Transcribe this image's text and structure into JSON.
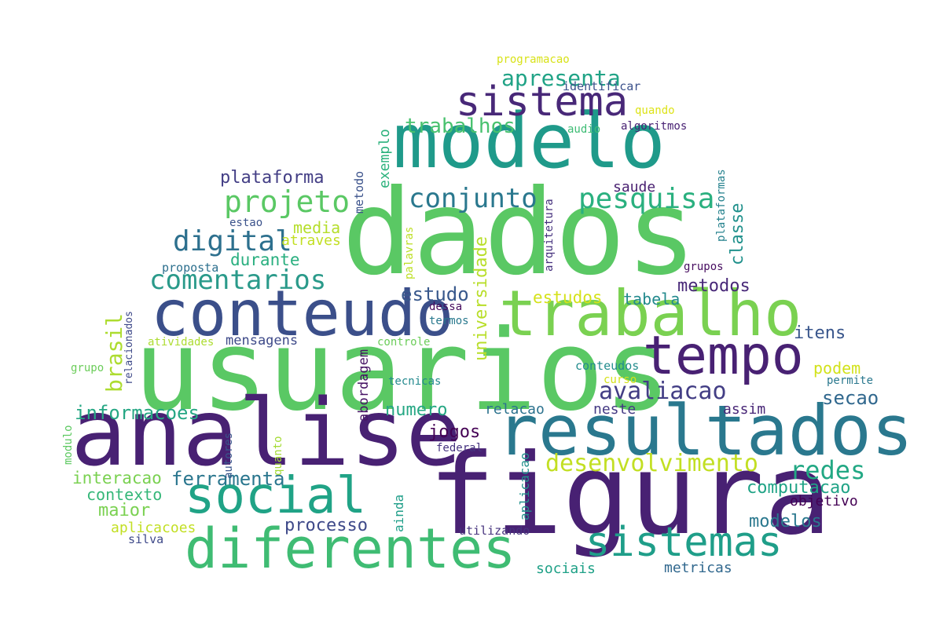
{
  "words": [
    {
      "text": "dados",
      "color": "#5ac864"
    },
    {
      "text": "usuarios",
      "color": "#5ac864"
    },
    {
      "text": "figura",
      "color": "#482173"
    },
    {
      "text": "analise",
      "color": "#482173"
    },
    {
      "text": "modelo",
      "color": "#1f9a8a"
    },
    {
      "text": "resultados",
      "color": "#2a788e"
    },
    {
      "text": "conteudo",
      "color": "#3b4f8a"
    },
    {
      "text": "trabalho",
      "color": "#7ad151"
    },
    {
      "text": "diferentes",
      "color": "#3fbc73"
    },
    {
      "text": "social",
      "color": "#20a386"
    },
    {
      "text": "tempo",
      "color": "#482173"
    },
    {
      "text": "sistema",
      "color": "#482878"
    },
    {
      "text": "sistemas",
      "color": "#1f9e89"
    },
    {
      "text": "projeto",
      "color": "#5ac864"
    },
    {
      "text": "pesquisa",
      "color": "#2ab07f"
    },
    {
      "text": "conjunto",
      "color": "#2a788e"
    },
    {
      "text": "digital",
      "color": "#2d708e"
    },
    {
      "text": "comentarios",
      "color": "#2a9a8a"
    },
    {
      "text": "desenvolvimento",
      "color": "#c2df23"
    },
    {
      "text": "avaliacao",
      "color": "#433e85"
    },
    {
      "text": "apresenta",
      "color": "#20a386"
    },
    {
      "text": "trabalhos",
      "color": "#48c16e"
    },
    {
      "text": "plataforma",
      "color": "#433e85"
    },
    {
      "text": "redes",
      "color": "#22a884"
    },
    {
      "text": "ferramenta",
      "color": "#2a768e"
    },
    {
      "text": "computacao",
      "color": "#20a386"
    },
    {
      "text": "estudo",
      "color": "#38588c"
    },
    {
      "text": "informacoes",
      "color": "#26a784"
    },
    {
      "text": "metodos",
      "color": "#482878"
    },
    {
      "text": "modelos",
      "color": "#2a788e"
    },
    {
      "text": "processo",
      "color": "#3e4989"
    },
    {
      "text": "secao",
      "color": "#31688e"
    },
    {
      "text": "numero",
      "color": "#26a784"
    },
    {
      "text": "estudos",
      "color": "#d5e21a"
    },
    {
      "text": "jogos",
      "color": "#440154"
    },
    {
      "text": "contexto",
      "color": "#35b779"
    },
    {
      "text": "maior",
      "color": "#7ad151"
    },
    {
      "text": "interacao",
      "color": "#7ad151"
    },
    {
      "text": "durante",
      "color": "#29af7f"
    },
    {
      "text": "media",
      "color": "#b5de2b"
    },
    {
      "text": "podem",
      "color": "#d2e21b"
    },
    {
      "text": "tabela",
      "color": "#238a8d"
    },
    {
      "text": "itens",
      "color": "#39568c"
    },
    {
      "text": "saude",
      "color": "#481f70"
    },
    {
      "text": "relacao",
      "color": "#2c728e"
    },
    {
      "text": "neste",
      "color": "#443983"
    },
    {
      "text": "assim",
      "color": "#482677"
    },
    {
      "text": "objetivo",
      "color": "#440154"
    },
    {
      "text": "mensagens",
      "color": "#3e4a89"
    },
    {
      "text": "atraves",
      "color": "#c2df23"
    },
    {
      "text": "aplicacoes",
      "color": "#c2df23"
    },
    {
      "text": "utilizando",
      "color": "#46337e"
    },
    {
      "text": "sociais",
      "color": "#1fa187"
    },
    {
      "text": "metricas",
      "color": "#31688e"
    },
    {
      "text": "silva",
      "color": "#3e4989"
    },
    {
      "text": "proposta",
      "color": "#2d708e"
    },
    {
      "text": "estao",
      "color": "#3b528b"
    },
    {
      "text": "dessa",
      "color": "#460a5d"
    },
    {
      "text": "termos",
      "color": "#29798e"
    },
    {
      "text": "controle",
      "color": "#6ccd5a"
    },
    {
      "text": "tecnicas",
      "color": "#23898e"
    },
    {
      "text": "conteudos",
      "color": "#228c8d"
    },
    {
      "text": "curso",
      "color": "#d5e21a"
    },
    {
      "text": "permite",
      "color": "#2a788e"
    },
    {
      "text": "federal",
      "color": "#463480"
    },
    {
      "text": "grupos",
      "color": "#470d60"
    },
    {
      "text": "programacao",
      "color": "#d8e219"
    },
    {
      "text": "identificar",
      "color": "#3b518b"
    },
    {
      "text": "quando",
      "color": "#dde318"
    },
    {
      "text": "audio",
      "color": "#3dbc74"
    },
    {
      "text": "algoritmos",
      "color": "#482173"
    },
    {
      "text": "atividades",
      "color": "#addc30"
    },
    {
      "text": "grupo",
      "color": "#6ccd5a"
    },
    {
      "text": "brasil",
      "color": "#addc30"
    },
    {
      "text": "universidade",
      "color": "#b8de29"
    },
    {
      "text": "classe",
      "color": "#21918c"
    },
    {
      "text": "exemplo",
      "color": "#2db27d"
    },
    {
      "text": "metodo",
      "color": "#3b528b"
    },
    {
      "text": "palavras",
      "color": "#bddf26"
    },
    {
      "text": "arquitetura",
      "color": "#46327e"
    },
    {
      "text": "plataformas",
      "color": "#26828e"
    },
    {
      "text": "abordagem",
      "color": "#471365"
    },
    {
      "text": "relacionados",
      "color": "#3e4989"
    },
    {
      "text": "autores",
      "color": "#39568c"
    },
    {
      "text": "quanto",
      "color": "#a5db36"
    },
    {
      "text": "ainda",
      "color": "#1f9e89"
    },
    {
      "text": "aplicacao",
      "color": "#21918c"
    },
    {
      "text": "modulo",
      "color": "#5ec962"
    }
  ]
}
